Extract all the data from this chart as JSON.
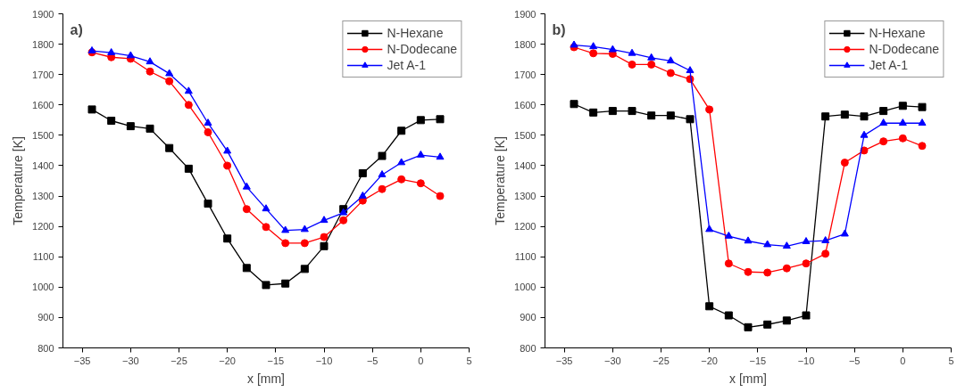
{
  "chart_data": [
    {
      "type": "line",
      "title": "a)",
      "xlabel": "x [mm]",
      "ylabel": "Temperature [K]",
      "x": [
        -34,
        -32,
        -30,
        -28,
        -26,
        -24,
        -22,
        -20,
        -18,
        -16,
        -14,
        -12,
        -10,
        -8,
        -6,
        -4,
        -2,
        0,
        2
      ],
      "xlim": [
        -37,
        5
      ],
      "xticks": [
        -35,
        -30,
        -25,
        -20,
        -15,
        -10,
        -5,
        0,
        5
      ],
      "ylim": [
        800,
        1900
      ],
      "yticks": [
        800,
        900,
        1000,
        1100,
        1200,
        1300,
        1400,
        1500,
        1600,
        1700,
        1800,
        1900
      ],
      "grid": false,
      "legend": "top right",
      "line_style": "solid",
      "series": [
        {
          "name": "N-Hexane",
          "color": "#000000",
          "marker": "square",
          "values": [
            1585,
            1548,
            1530,
            1522,
            1458,
            1390,
            1275,
            1160,
            1063,
            1007,
            1012,
            1060,
            1135,
            1257,
            1375,
            1432,
            1515,
            1550,
            1553
          ]
        },
        {
          "name": "N-Dodecane",
          "color": "#ff0000",
          "marker": "circle",
          "values": [
            1773,
            1757,
            1752,
            1710,
            1678,
            1600,
            1510,
            1400,
            1257,
            1198,
            1145,
            1145,
            1165,
            1220,
            1285,
            1323,
            1355,
            1342,
            1300
          ]
        },
        {
          "name": "Jet A-1",
          "color": "#0000ff",
          "marker": "triangle",
          "values": [
            1778,
            1772,
            1762,
            1742,
            1703,
            1645,
            1540,
            1448,
            1330,
            1258,
            1187,
            1190,
            1220,
            1245,
            1300,
            1370,
            1410,
            1435,
            1428
          ]
        }
      ]
    },
    {
      "type": "line",
      "title": "b)",
      "xlabel": "x [mm]",
      "ylabel": "Temperature [K]",
      "x": [
        -34,
        -32,
        -30,
        -28,
        -26,
        -24,
        -22,
        -20,
        -18,
        -16,
        -14,
        -12,
        -10,
        -8,
        -6,
        -4,
        -2,
        0,
        2
      ],
      "xlim": [
        -37,
        5
      ],
      "xticks": [
        -35,
        -30,
        -25,
        -20,
        -15,
        -10,
        -5,
        0,
        5
      ],
      "ylim": [
        800,
        1900
      ],
      "yticks": [
        800,
        900,
        1000,
        1100,
        1200,
        1300,
        1400,
        1500,
        1600,
        1700,
        1800,
        1900
      ],
      "grid": false,
      "legend": "top right",
      "line_style": "solid",
      "series": [
        {
          "name": "N-Hexane",
          "color": "#000000",
          "marker": "square",
          "values": [
            1603,
            1575,
            1580,
            1580,
            1565,
            1565,
            1553,
            937,
            907,
            868,
            877,
            890,
            907,
            1562,
            1568,
            1562,
            1580,
            1597,
            1593
          ]
        },
        {
          "name": "N-Dodecane",
          "color": "#ff0000",
          "marker": "circle",
          "values": [
            1790,
            1770,
            1768,
            1733,
            1733,
            1705,
            1685,
            1585,
            1078,
            1050,
            1048,
            1062,
            1078,
            1110,
            1410,
            1450,
            1480,
            1490,
            1465
          ]
        },
        {
          "name": "Jet A-1",
          "color": "#0000ff",
          "marker": "triangle",
          "values": [
            1797,
            1792,
            1782,
            1770,
            1755,
            1745,
            1713,
            1190,
            1168,
            1152,
            1140,
            1135,
            1150,
            1153,
            1175,
            1500,
            1540,
            1540,
            1540
          ]
        }
      ]
    }
  ]
}
